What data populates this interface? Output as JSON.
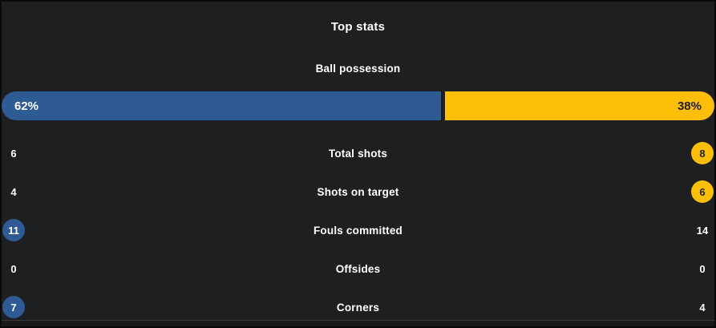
{
  "title": "Top stats",
  "colors": {
    "background": "#1e1f21",
    "home_accent": "#2e5b94",
    "away_accent": "#fcbe06",
    "text": "#ffffff",
    "dark_text": "#1e1f21"
  },
  "possession": {
    "label": "Ball possession",
    "home_label": "62%",
    "away_label": "38%",
    "home_pct": 62,
    "away_pct": 38
  },
  "stats": [
    {
      "label": "Total shots",
      "home": "6",
      "away": "8",
      "highlight": "away"
    },
    {
      "label": "Shots on target",
      "home": "4",
      "away": "6",
      "highlight": "away"
    },
    {
      "label": "Fouls committed",
      "home": "11",
      "away": "14",
      "highlight": "home"
    },
    {
      "label": "Offsides",
      "home": "0",
      "away": "0",
      "highlight": "none"
    },
    {
      "label": "Corners",
      "home": "7",
      "away": "4",
      "highlight": "home"
    }
  ]
}
